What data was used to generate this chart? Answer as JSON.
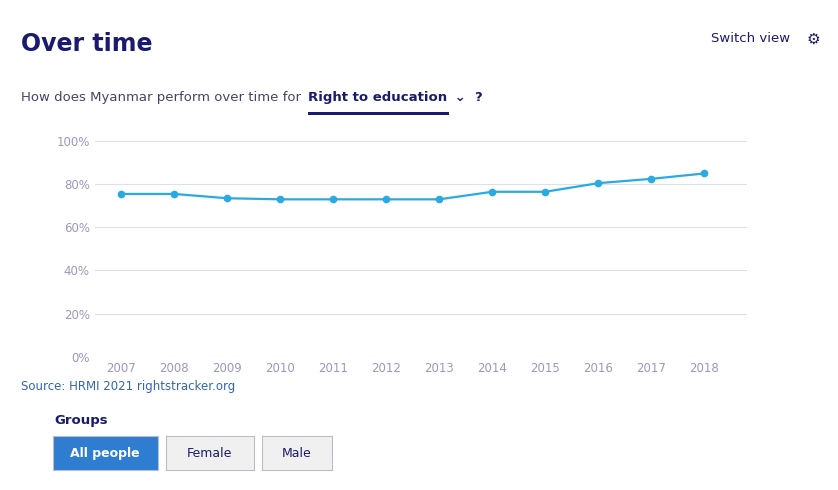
{
  "title": "Over time",
  "subtitle_plain": "How does Myanmar perform over time for",
  "subtitle_highlight": "Right to education",
  "years": [
    2007,
    2008,
    2009,
    2010,
    2011,
    2012,
    2013,
    2014,
    2015,
    2016,
    2017,
    2018
  ],
  "values": [
    75.5,
    75.5,
    73.5,
    73.0,
    73.0,
    73.0,
    73.0,
    76.5,
    76.5,
    80.5,
    82.5,
    85.0
  ],
  "line_color": "#29ABE2",
  "marker_color": "#29ABE2",
  "background_color": "#ffffff",
  "grid_color": "#dde0e8",
  "axis_label_color": "#9999bb",
  "title_color": "#1a1a6e",
  "subtitle_color": "#444466",
  "highlight_color": "#1a1a6e",
  "source_color": "#3366aa",
  "source_text": "Source: HRMI 2021 rightstracker.org",
  "ylim": [
    0,
    100
  ],
  "yticks": [
    0,
    20,
    40,
    60,
    80,
    100
  ],
  "ytick_labels": [
    "0%",
    "20%",
    "40%",
    "60%",
    "80%",
    "100%"
  ],
  "groups_label": "Groups",
  "button_all": "All people",
  "button_female": "Female",
  "button_male": "Male",
  "button_all_color": "#2e7dd1",
  "button_inactive_bg": "#f0f0f0",
  "switch_view": "Switch view"
}
